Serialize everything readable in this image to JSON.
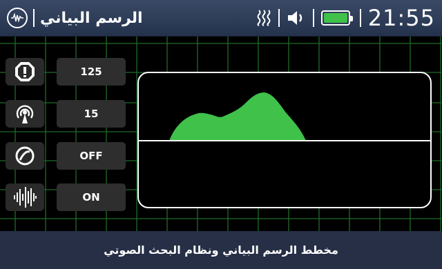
{
  "header": {
    "title": "الرسم البياني",
    "time": "21:55",
    "battery_level": 1.0,
    "icons": [
      "waveform-logo-icon",
      "signal-bars-icon",
      "speaker-icon",
      "battery-icon"
    ]
  },
  "settings": [
    {
      "icon": "octagon-alert-icon",
      "value": "125"
    },
    {
      "icon": "antenna-icon",
      "value": "15"
    },
    {
      "icon": "loop-icon",
      "value": "OFF"
    },
    {
      "icon": "audio-wave-icon",
      "value": "ON"
    }
  ],
  "footer": {
    "caption": "مخطط الرسم البياني ونظام البحث الصوتي"
  },
  "colors": {
    "accent_green": "#3fc14a",
    "grid_green": "#1e6b2a",
    "header_bg": "#2d3b57",
    "footer_bg": "#262f46"
  }
}
